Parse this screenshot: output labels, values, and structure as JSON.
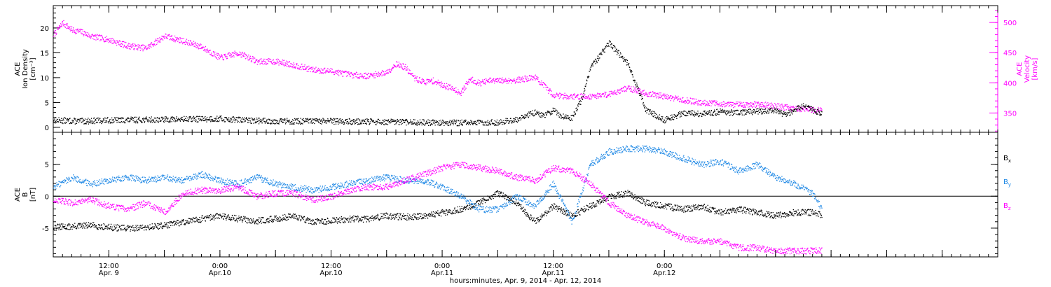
{
  "chart_data": [
    {
      "type": "scatter",
      "panel": "top",
      "ylabel_lines": [
        "ACE",
        "Ion Density",
        "[cm⁻³]"
      ],
      "ylim": [
        -1,
        24.5
      ],
      "yticks": [
        0,
        5,
        10,
        15,
        20
      ],
      "ylabel_right_lines": [
        "ACE",
        "Velocity",
        "[km/s]"
      ],
      "ylim_right": [
        318,
        528
      ],
      "yticks_right": [
        350,
        400,
        450,
        500
      ],
      "colors": {
        "density": "#000000",
        "velocity": "#ff00ff"
      },
      "series": [
        {
          "axis": "left",
          "color": "density",
          "x_hours": [
            0,
            3,
            6,
            10,
            14,
            18,
            22,
            26,
            30,
            34,
            38,
            42,
            46,
            48,
            50,
            51,
            52,
            53,
            54,
            55,
            56,
            57,
            58,
            60,
            62,
            64,
            66,
            68,
            70,
            72,
            74,
            76,
            78,
            79,
            80,
            81,
            82,
            83
          ],
          "y": [
            1.5,
            1.3,
            1.5,
            1.6,
            1.7,
            1.8,
            1.4,
            1.3,
            1.3,
            1.2,
            1.1,
            1.0,
            1.0,
            1.1,
            1.6,
            2.5,
            3.0,
            2.5,
            3.5,
            2.2,
            2.0,
            5.5,
            12.0,
            17.0,
            13.0,
            3.5,
            1.5,
            3.0,
            2.8,
            3.2,
            3.0,
            3.3,
            3.5,
            2.5,
            3.5,
            4.5,
            3.5,
            3.0
          ]
        },
        {
          "axis": "right",
          "color": "velocity",
          "x_hours": [
            0,
            1,
            2,
            3,
            4,
            6,
            8,
            10,
            12,
            14,
            16,
            18,
            20,
            22,
            24,
            26,
            28,
            30,
            32,
            34,
            36,
            37,
            38,
            39,
            40,
            41,
            42,
            43,
            44,
            45,
            46,
            47,
            48,
            50,
            52,
            54,
            56,
            58,
            60,
            62,
            64,
            66,
            68,
            70,
            72,
            74,
            76,
            78,
            80,
            82,
            83
          ],
          "y": [
            480,
            500,
            488,
            485,
            478,
            472,
            462,
            458,
            478,
            470,
            460,
            442,
            450,
            436,
            436,
            430,
            422,
            420,
            414,
            412,
            418,
            432,
            426,
            408,
            402,
            404,
            397,
            392,
            384,
            407,
            400,
            404,
            404,
            405,
            410,
            380,
            378,
            378,
            382,
            392,
            383,
            378,
            372,
            368,
            366,
            364,
            365,
            362,
            358,
            356,
            356
          ]
        }
      ]
    },
    {
      "type": "scatter",
      "panel": "bottom",
      "ylabel_lines": [
        "ACE",
        "B",
        "[nT]"
      ],
      "ylim": [
        -9.5,
        10
      ],
      "yticks": [
        -5,
        0,
        5
      ],
      "zero_line": true,
      "legend": [
        "Bx",
        "By",
        "Bz"
      ],
      "colors": {
        "Bx": "#000000",
        "By": "#1e88e5",
        "Bz": "#ff00ff"
      },
      "series": [
        {
          "name": "Bx",
          "x_hours": [
            0,
            2,
            4,
            6,
            8,
            10,
            12,
            14,
            16,
            18,
            20,
            22,
            24,
            26,
            28,
            30,
            32,
            34,
            36,
            38,
            40,
            42,
            44,
            46,
            48,
            50,
            52,
            54,
            56,
            58,
            60,
            62,
            64,
            66,
            68,
            70,
            72,
            74,
            76,
            78,
            80,
            82,
            83
          ],
          "y": [
            -4.8,
            -4.7,
            -4.5,
            -4.8,
            -5.0,
            -4.8,
            -4.5,
            -4.0,
            -3.5,
            -3.0,
            -3.5,
            -3.8,
            -3.5,
            -3.0,
            -4.0,
            -3.8,
            -3.5,
            -3.5,
            -3.0,
            -3.2,
            -3.0,
            -2.5,
            -2.0,
            -1.0,
            0.5,
            -1.0,
            -4.0,
            -1.5,
            -3.0,
            -1.5,
            0.0,
            0.5,
            -1.0,
            -1.5,
            -2.0,
            -1.5,
            -2.5,
            -2.0,
            -2.5,
            -3.0,
            -2.5,
            -2.5,
            -3.0
          ]
        },
        {
          "name": "By",
          "x_hours": [
            0,
            2,
            4,
            6,
            8,
            10,
            12,
            14,
            16,
            18,
            20,
            22,
            24,
            26,
            28,
            30,
            32,
            34,
            36,
            38,
            40,
            42,
            44,
            46,
            48,
            50,
            52,
            54,
            56,
            58,
            60,
            62,
            64,
            66,
            68,
            70,
            72,
            74,
            76,
            78,
            80,
            82,
            83
          ],
          "y": [
            1.5,
            3.0,
            2.0,
            2.5,
            3.0,
            2.5,
            3.0,
            2.5,
            3.5,
            2.5,
            2.0,
            3.0,
            2.0,
            1.5,
            1.0,
            1.5,
            2.0,
            2.5,
            3.0,
            2.5,
            2.5,
            1.5,
            0.0,
            -2.0,
            -2.0,
            0.0,
            -1.5,
            2.0,
            -4.0,
            5.0,
            7.0,
            7.5,
            7.5,
            7.0,
            6.0,
            5.0,
            5.5,
            4.0,
            5.0,
            3.0,
            2.0,
            0.5,
            -2.0
          ]
        },
        {
          "name": "Bz",
          "x_hours": [
            0,
            2,
            4,
            6,
            8,
            10,
            12,
            14,
            16,
            18,
            20,
            22,
            24,
            26,
            28,
            30,
            32,
            34,
            36,
            38,
            40,
            42,
            44,
            46,
            48,
            50,
            52,
            54,
            56,
            58,
            60,
            62,
            64,
            66,
            68,
            70,
            72,
            74,
            76,
            78,
            80,
            82,
            83
          ],
          "y": [
            -0.5,
            -1.0,
            -0.5,
            -1.5,
            -2.0,
            -1.0,
            -2.5,
            0.5,
            1.0,
            1.0,
            1.5,
            0.0,
            0.5,
            0.5,
            -0.5,
            0.0,
            1.0,
            1.5,
            1.5,
            2.5,
            3.5,
            4.5,
            5.0,
            4.5,
            4.0,
            3.0,
            2.5,
            4.5,
            4.0,
            2.0,
            -1.0,
            -3.0,
            -4.0,
            -5.0,
            -6.5,
            -7.0,
            -7.0,
            -8.0,
            -8.0,
            -8.5,
            -8.5,
            -8.5,
            -8.5
          ]
        }
      ]
    }
  ],
  "x_axis": {
    "start_label": "Apr. 9, 2014 06:00",
    "range_hours": [
      0,
      102
    ],
    "ticks": [
      {
        "hour": 6,
        "lines": [
          "12:00",
          "Apr. 9"
        ]
      },
      {
        "hour": 18,
        "lines": [
          "0:00",
          "Apr.10"
        ]
      },
      {
        "hour": 30,
        "lines": [
          "12:00",
          "Apr.10"
        ]
      },
      {
        "hour": 42,
        "lines": [
          "0:00",
          "Apr.11"
        ]
      },
      {
        "hour": 54,
        "lines": [
          "12:00",
          "Apr.11"
        ]
      },
      {
        "hour": 66,
        "lines": [
          "0:00",
          "Apr.12"
        ]
      }
    ],
    "title": "hours:minutes, Apr.  9, 2014 - Apr. 12, 2014"
  }
}
